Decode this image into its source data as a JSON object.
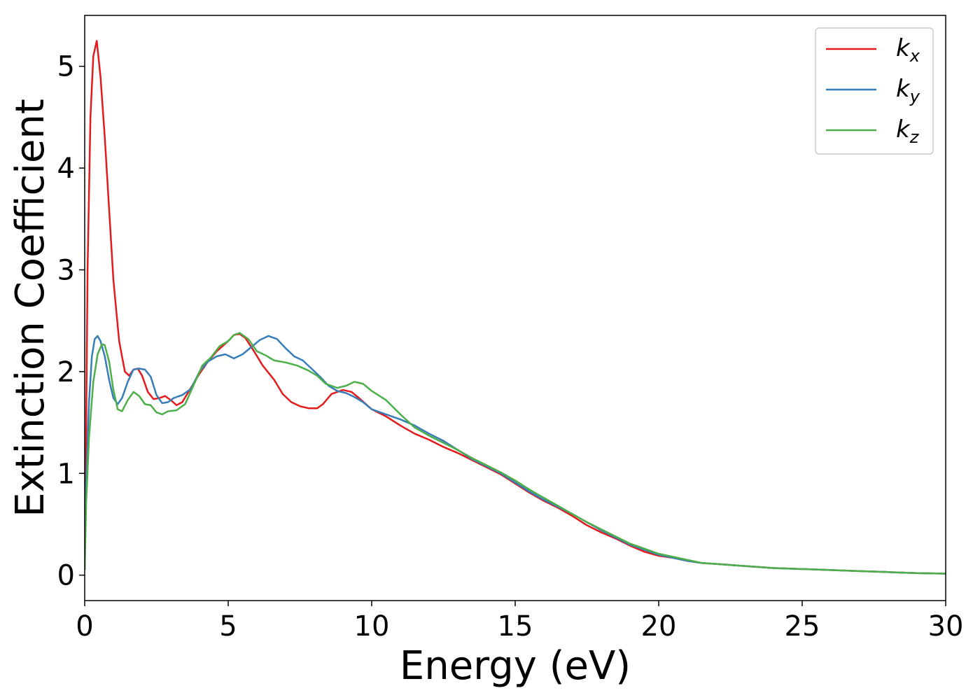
{
  "chart_data": {
    "type": "line",
    "title": "",
    "xlabel": "Energy (eV)",
    "ylabel": "Extinction Coefficient",
    "xlim": [
      0,
      30
    ],
    "ylim": [
      -0.25,
      5.5
    ],
    "xticks": [
      0,
      5,
      10,
      15,
      20,
      25,
      30
    ],
    "yticks": [
      0,
      1,
      2,
      3,
      4,
      5
    ],
    "grid": false,
    "legend_position": "top-right",
    "series": [
      {
        "name": "k",
        "subscript": "x",
        "color": "#e41a1c",
        "points": [
          [
            0,
            0.05
          ],
          [
            0.05,
            1.4
          ],
          [
            0.1,
            3.0
          ],
          [
            0.2,
            4.5
          ],
          [
            0.3,
            5.1
          ],
          [
            0.42,
            5.25
          ],
          [
            0.55,
            4.9
          ],
          [
            0.7,
            4.3
          ],
          [
            0.85,
            3.6
          ],
          [
            1.0,
            2.9
          ],
          [
            1.2,
            2.3
          ],
          [
            1.4,
            2.0
          ],
          [
            1.55,
            1.96
          ],
          [
            1.7,
            2.02
          ],
          [
            1.85,
            2.03
          ],
          [
            2.0,
            1.96
          ],
          [
            2.2,
            1.8
          ],
          [
            2.4,
            1.73
          ],
          [
            2.6,
            1.74
          ],
          [
            2.8,
            1.76
          ],
          [
            3.0,
            1.72
          ],
          [
            3.2,
            1.67
          ],
          [
            3.4,
            1.7
          ],
          [
            3.7,
            1.84
          ],
          [
            4.0,
            1.98
          ],
          [
            4.3,
            2.1
          ],
          [
            4.6,
            2.2
          ],
          [
            5.0,
            2.3
          ],
          [
            5.2,
            2.36
          ],
          [
            5.4,
            2.37
          ],
          [
            5.6,
            2.33
          ],
          [
            5.9,
            2.2
          ],
          [
            6.2,
            2.06
          ],
          [
            6.6,
            1.92
          ],
          [
            6.9,
            1.78
          ],
          [
            7.2,
            1.7
          ],
          [
            7.5,
            1.66
          ],
          [
            7.8,
            1.64
          ],
          [
            8.1,
            1.64
          ],
          [
            8.3,
            1.68
          ],
          [
            8.6,
            1.78
          ],
          [
            9.0,
            1.82
          ],
          [
            9.3,
            1.8
          ],
          [
            9.6,
            1.73
          ],
          [
            10.0,
            1.63
          ],
          [
            10.5,
            1.56
          ],
          [
            11.0,
            1.47
          ],
          [
            11.5,
            1.39
          ],
          [
            12.0,
            1.33
          ],
          [
            12.5,
            1.26
          ],
          [
            13.0,
            1.2
          ],
          [
            13.5,
            1.13
          ],
          [
            14.0,
            1.06
          ],
          [
            14.5,
            0.99
          ],
          [
            15.0,
            0.9
          ],
          [
            15.5,
            0.81
          ],
          [
            16.0,
            0.73
          ],
          [
            16.5,
            0.66
          ],
          [
            17.0,
            0.58
          ],
          [
            17.5,
            0.49
          ],
          [
            18.0,
            0.42
          ],
          [
            18.5,
            0.36
          ],
          [
            19.0,
            0.29
          ],
          [
            19.5,
            0.23
          ],
          [
            20.0,
            0.19
          ],
          [
            20.5,
            0.17
          ],
          [
            21.0,
            0.14
          ],
          [
            21.5,
            0.12
          ],
          [
            22.0,
            0.11
          ],
          [
            23.0,
            0.09
          ],
          [
            24.0,
            0.07
          ],
          [
            25.0,
            0.06
          ],
          [
            26.0,
            0.05
          ],
          [
            27.0,
            0.04
          ],
          [
            28.0,
            0.03
          ],
          [
            29.0,
            0.02
          ],
          [
            30.0,
            0.015
          ]
        ]
      },
      {
        "name": "k",
        "subscript": "y",
        "color": "#377eb8",
        "points": [
          [
            0,
            0.05
          ],
          [
            0.05,
            0.9
          ],
          [
            0.15,
            1.7
          ],
          [
            0.25,
            2.15
          ],
          [
            0.35,
            2.32
          ],
          [
            0.45,
            2.35
          ],
          [
            0.55,
            2.3
          ],
          [
            0.7,
            2.15
          ],
          [
            0.85,
            1.92
          ],
          [
            1.0,
            1.74
          ],
          [
            1.15,
            1.68
          ],
          [
            1.3,
            1.74
          ],
          [
            1.5,
            1.9
          ],
          [
            1.7,
            2.02
          ],
          [
            1.9,
            2.03
          ],
          [
            2.1,
            2.02
          ],
          [
            2.3,
            1.95
          ],
          [
            2.5,
            1.77
          ],
          [
            2.7,
            1.69
          ],
          [
            2.9,
            1.7
          ],
          [
            3.1,
            1.74
          ],
          [
            3.4,
            1.77
          ],
          [
            3.7,
            1.83
          ],
          [
            4.0,
            2.0
          ],
          [
            4.3,
            2.1
          ],
          [
            4.6,
            2.15
          ],
          [
            4.9,
            2.17
          ],
          [
            5.2,
            2.13
          ],
          [
            5.5,
            2.17
          ],
          [
            5.8,
            2.24
          ],
          [
            6.1,
            2.31
          ],
          [
            6.4,
            2.35
          ],
          [
            6.7,
            2.32
          ],
          [
            7.0,
            2.23
          ],
          [
            7.3,
            2.15
          ],
          [
            7.6,
            2.11
          ],
          [
            7.9,
            2.03
          ],
          [
            8.2,
            1.95
          ],
          [
            8.5,
            1.86
          ],
          [
            8.8,
            1.81
          ],
          [
            9.1,
            1.79
          ],
          [
            9.4,
            1.75
          ],
          [
            9.7,
            1.7
          ],
          [
            10.0,
            1.63
          ],
          [
            10.5,
            1.58
          ],
          [
            11.0,
            1.53
          ],
          [
            11.5,
            1.47
          ],
          [
            12.0,
            1.39
          ],
          [
            12.5,
            1.32
          ],
          [
            13.0,
            1.23
          ],
          [
            13.5,
            1.14
          ],
          [
            14.0,
            1.07
          ],
          [
            14.5,
            1.0
          ],
          [
            15.0,
            0.91
          ],
          [
            15.5,
            0.82
          ],
          [
            16.0,
            0.74
          ],
          [
            16.5,
            0.67
          ],
          [
            17.0,
            0.6
          ],
          [
            17.5,
            0.52
          ],
          [
            18.0,
            0.44
          ],
          [
            18.5,
            0.37
          ],
          [
            19.0,
            0.3
          ],
          [
            19.5,
            0.25
          ],
          [
            20.0,
            0.2
          ],
          [
            20.5,
            0.17
          ],
          [
            21.0,
            0.14
          ],
          [
            21.5,
            0.12
          ],
          [
            22.0,
            0.11
          ],
          [
            23.0,
            0.09
          ],
          [
            24.0,
            0.07
          ],
          [
            25.0,
            0.06
          ],
          [
            26.0,
            0.05
          ],
          [
            27.0,
            0.04
          ],
          [
            28.0,
            0.03
          ],
          [
            29.0,
            0.02
          ],
          [
            30.0,
            0.015
          ]
        ]
      },
      {
        "name": "k",
        "subscript": "z",
        "color": "#4daf4a",
        "points": [
          [
            0,
            0.05
          ],
          [
            0.05,
            0.7
          ],
          [
            0.15,
            1.35
          ],
          [
            0.3,
            1.9
          ],
          [
            0.45,
            2.17
          ],
          [
            0.6,
            2.27
          ],
          [
            0.7,
            2.26
          ],
          [
            0.85,
            2.1
          ],
          [
            1.0,
            1.82
          ],
          [
            1.15,
            1.63
          ],
          [
            1.3,
            1.61
          ],
          [
            1.5,
            1.72
          ],
          [
            1.7,
            1.8
          ],
          [
            1.9,
            1.76
          ],
          [
            2.1,
            1.68
          ],
          [
            2.3,
            1.67
          ],
          [
            2.5,
            1.6
          ],
          [
            2.7,
            1.58
          ],
          [
            2.9,
            1.61
          ],
          [
            3.2,
            1.62
          ],
          [
            3.5,
            1.68
          ],
          [
            3.8,
            1.87
          ],
          [
            4.1,
            2.06
          ],
          [
            4.4,
            2.14
          ],
          [
            4.7,
            2.25
          ],
          [
            5.0,
            2.3
          ],
          [
            5.2,
            2.36
          ],
          [
            5.4,
            2.38
          ],
          [
            5.7,
            2.32
          ],
          [
            6.0,
            2.2
          ],
          [
            6.3,
            2.16
          ],
          [
            6.6,
            2.11
          ],
          [
            7.0,
            2.09
          ],
          [
            7.4,
            2.06
          ],
          [
            7.8,
            2.01
          ],
          [
            8.1,
            1.96
          ],
          [
            8.4,
            1.88
          ],
          [
            8.8,
            1.84
          ],
          [
            9.1,
            1.86
          ],
          [
            9.4,
            1.9
          ],
          [
            9.7,
            1.88
          ],
          [
            10.0,
            1.81
          ],
          [
            10.5,
            1.72
          ],
          [
            11.0,
            1.58
          ],
          [
            11.5,
            1.45
          ],
          [
            12.0,
            1.37
          ],
          [
            12.5,
            1.3
          ],
          [
            13.0,
            1.23
          ],
          [
            13.5,
            1.15
          ],
          [
            14.0,
            1.08
          ],
          [
            14.5,
            1.01
          ],
          [
            15.0,
            0.93
          ],
          [
            15.5,
            0.84
          ],
          [
            16.0,
            0.76
          ],
          [
            16.5,
            0.68
          ],
          [
            17.0,
            0.6
          ],
          [
            17.5,
            0.52
          ],
          [
            18.0,
            0.45
          ],
          [
            18.5,
            0.38
          ],
          [
            19.0,
            0.31
          ],
          [
            19.5,
            0.26
          ],
          [
            20.0,
            0.21
          ],
          [
            20.5,
            0.18
          ],
          [
            21.0,
            0.15
          ],
          [
            21.5,
            0.12
          ],
          [
            22.0,
            0.11
          ],
          [
            23.0,
            0.09
          ],
          [
            24.0,
            0.07
          ],
          [
            25.0,
            0.06
          ],
          [
            26.0,
            0.05
          ],
          [
            27.0,
            0.04
          ],
          [
            28.0,
            0.03
          ],
          [
            29.0,
            0.02
          ],
          [
            30.0,
            0.015
          ]
        ]
      }
    ]
  }
}
